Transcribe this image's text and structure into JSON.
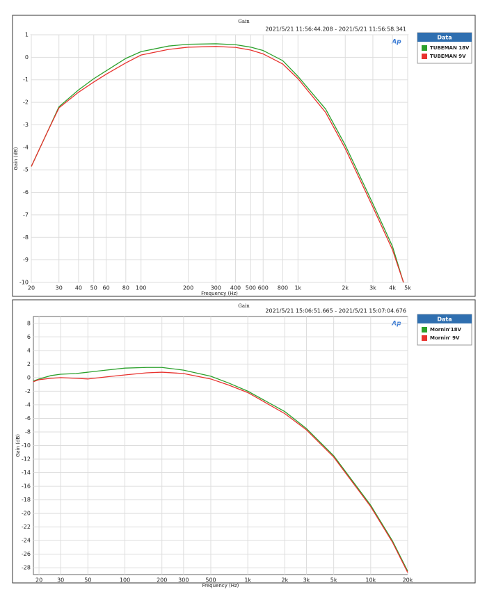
{
  "chart_data": [
    {
      "type": "line",
      "title": "Gain",
      "subtitle": "2021/5/21 11:56:44.208 - 2021/5/21 11:56:58.341",
      "x_label": "Frequency (Hz)",
      "y_label": "Gain (dB)",
      "logo": "Ap",
      "legend_title": "Data",
      "legend": "right",
      "xscale": "log",
      "grid": true,
      "xlim": [
        20,
        5000
      ],
      "ylim": [
        -10,
        1
      ],
      "xticks": [
        20,
        30,
        40,
        50,
        60,
        80,
        100,
        200,
        300,
        400,
        500,
        600,
        800,
        {
          "value": 1000,
          "label": "1k"
        },
        {
          "value": 2000,
          "label": "2k"
        },
        {
          "value": 3000,
          "label": "3k"
        },
        {
          "value": 4000,
          "label": "4k"
        },
        {
          "value": 5000,
          "label": "5k"
        }
      ],
      "yticks": [
        -10,
        -9,
        -8,
        -7,
        -6,
        -5,
        -4,
        -3,
        -2,
        -1,
        0,
        1
      ],
      "x": [
        20,
        25,
        30,
        40,
        50,
        60,
        80,
        100,
        150,
        200,
        300,
        400,
        500,
        600,
        800,
        1000,
        1500,
        2000,
        3000,
        4000,
        4700
      ],
      "series": [
        {
          "name": "TUBEMAN 18V",
          "color": "#2ca02c",
          "values": [
            -4.85,
            -3.4,
            -2.2,
            -1.45,
            -0.95,
            -0.6,
            -0.05,
            0.25,
            0.5,
            0.58,
            0.6,
            0.56,
            0.45,
            0.3,
            -0.15,
            -0.85,
            -2.3,
            -3.9,
            -6.5,
            -8.4,
            -10
          ]
        },
        {
          "name": "TUBEMAN 9V",
          "color": "#e8322e",
          "values": [
            -4.85,
            -3.4,
            -2.25,
            -1.55,
            -1.1,
            -0.75,
            -0.25,
            0.1,
            0.35,
            0.45,
            0.48,
            0.44,
            0.32,
            0.15,
            -0.3,
            -0.95,
            -2.45,
            -4.05,
            -6.65,
            -8.55,
            -10
          ]
        }
      ]
    },
    {
      "type": "line",
      "title": "Gain",
      "subtitle": "2021/5/21 15:06:51.665 - 2021/5/21 15:07:04.676",
      "x_label": "Frequency (Hz)",
      "y_label": "Gain (dB)",
      "logo": "Ap",
      "legend_title": "Data",
      "legend": "right",
      "xscale": "log",
      "grid": true,
      "xlim": [
        18,
        20000
      ],
      "ylim": [
        -29,
        9
      ],
      "xticks": [
        20,
        30,
        50,
        100,
        200,
        300,
        500,
        {
          "value": 1000,
          "label": "1k"
        },
        {
          "value": 2000,
          "label": "2k"
        },
        {
          "value": 3000,
          "label": "3k"
        },
        {
          "value": 5000,
          "label": "5k"
        },
        {
          "value": 10000,
          "label": "10k"
        },
        {
          "value": 20000,
          "label": "20k"
        }
      ],
      "yticks": [
        -28,
        -26,
        -24,
        -22,
        -20,
        -18,
        -16,
        -14,
        -12,
        -10,
        -8,
        -6,
        -4,
        -2,
        0,
        2,
        4,
        6,
        8
      ],
      "x": [
        18,
        20,
        25,
        30,
        40,
        50,
        70,
        100,
        150,
        200,
        300,
        500,
        700,
        1000,
        2000,
        3000,
        5000,
        10000,
        15000,
        20000
      ],
      "series": [
        {
          "name": "Mornin'18V",
          "color": "#2ca02c",
          "values": [
            -0.5,
            -0.2,
            0.3,
            0.5,
            0.6,
            0.8,
            1.1,
            1.4,
            1.5,
            1.5,
            1.1,
            0.2,
            -0.8,
            -2,
            -5,
            -7.5,
            -11.5,
            -18.8,
            -24,
            -28.5
          ]
        },
        {
          "name": "Mornin' 9V",
          "color": "#e8322e",
          "values": [
            -0.6,
            -0.3,
            -0.1,
            0,
            -0.1,
            -0.2,
            0.1,
            0.4,
            0.7,
            0.8,
            0.6,
            -0.2,
            -1.1,
            -2.2,
            -5.3,
            -7.7,
            -11.7,
            -19,
            -24.2,
            -28.7
          ]
        }
      ]
    }
  ]
}
